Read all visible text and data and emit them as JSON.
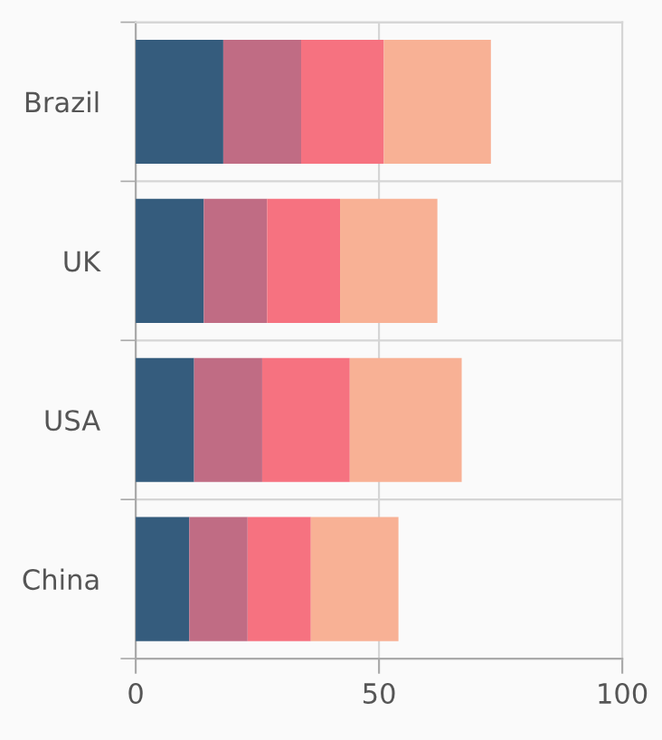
{
  "chart_data": {
    "type": "bar",
    "orientation": "horizontal",
    "stacked": true,
    "categories": [
      "Brazil",
      "UK",
      "USA",
      "China"
    ],
    "series": [
      {
        "color": "#355c7d",
        "values": [
          18,
          14,
          12,
          11
        ]
      },
      {
        "color": "#c06c84",
        "values": [
          16,
          13,
          14,
          12
        ]
      },
      {
        "color": "#f67280",
        "values": [
          17,
          15,
          18,
          13
        ]
      },
      {
        "color": "#f8b195",
        "values": [
          22,
          20,
          23,
          18
        ]
      }
    ],
    "xlim": [
      0,
      100
    ],
    "xticks": [
      0,
      50,
      100
    ],
    "grid": true
  }
}
